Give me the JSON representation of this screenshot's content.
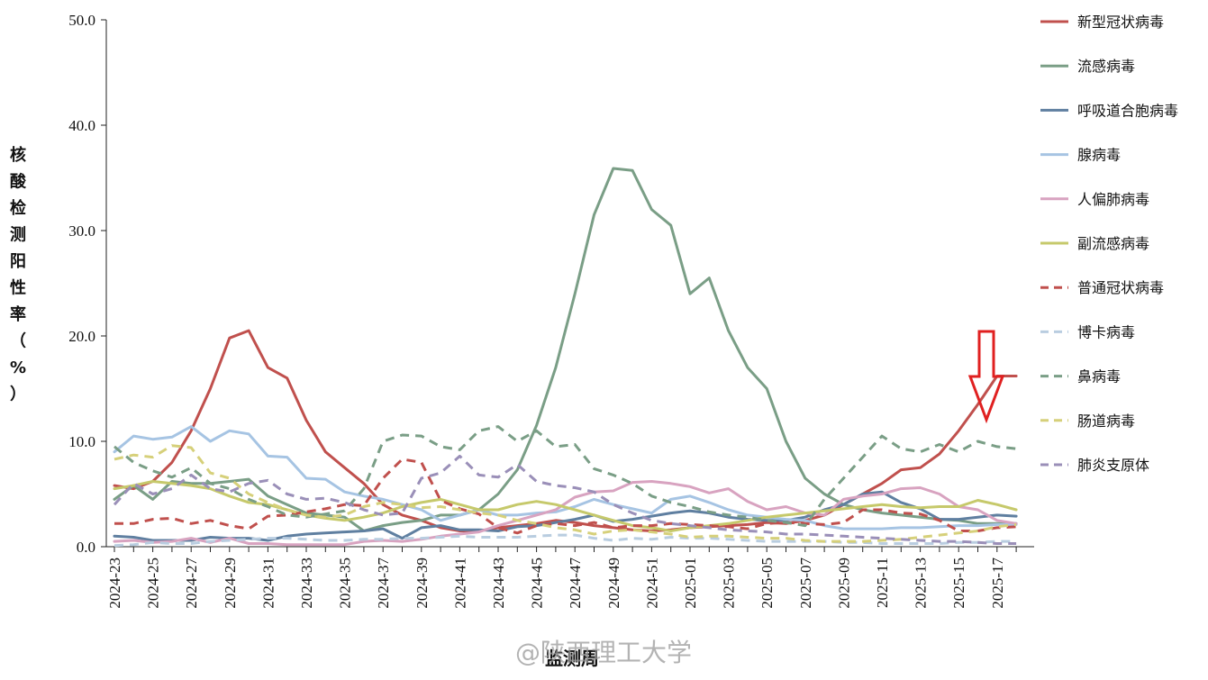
{
  "chart_data": {
    "type": "line",
    "title": "",
    "xlabel": "监测周",
    "ylabel": "核酸检测阳性率（%）",
    "ylim": [
      0,
      50
    ],
    "yticks": [
      "0.0",
      "10.0",
      "20.0",
      "30.0",
      "40.0",
      "50.0"
    ],
    "grid": false,
    "legend_position": "right",
    "watermark": "@陕西理工大学",
    "x": [
      "2024-23",
      "2024-24",
      "2024-25",
      "2024-26",
      "2024-27",
      "2024-28",
      "2024-29",
      "2024-30",
      "2024-31",
      "2024-32",
      "2024-33",
      "2024-34",
      "2024-35",
      "2024-36",
      "2024-37",
      "2024-38",
      "2024-39",
      "2024-40",
      "2024-41",
      "2024-42",
      "2024-43",
      "2024-44",
      "2024-45",
      "2024-46",
      "2024-47",
      "2024-48",
      "2024-49",
      "2024-50",
      "2024-51",
      "2024-52",
      "2025-01",
      "2025-02",
      "2025-03",
      "2025-04",
      "2025-05",
      "2025-06",
      "2025-07",
      "2025-08",
      "2025-09",
      "2025-10",
      "2025-11",
      "2025-12",
      "2025-13",
      "2025-14",
      "2025-15",
      "2025-16",
      "2025-17",
      "2025-18"
    ],
    "x_tick_labels": [
      "2024-23",
      "2024-25",
      "2024-27",
      "2024-29",
      "2024-31",
      "2024-33",
      "2024-35",
      "2024-37",
      "2024-39",
      "2024-41",
      "2024-43",
      "2024-45",
      "2024-47",
      "2024-49",
      "2024-51",
      "2025-01",
      "2025-03",
      "2025-05",
      "2025-07",
      "2025-09",
      "2025-11",
      "2025-13",
      "2025-15",
      "2025-17"
    ],
    "series": [
      {
        "name": "新型冠状病毒",
        "color": "#c0504d",
        "dash": false,
        "values": [
          5.8,
          5.5,
          6.2,
          8.0,
          11.0,
          15.0,
          19.8,
          20.5,
          17.0,
          16.0,
          12.0,
          9.0,
          7.5,
          6.0,
          4.0,
          3.0,
          2.5,
          1.8,
          1.5,
          1.5,
          1.8,
          2.0,
          2.2,
          2.5,
          2.3,
          2.0,
          1.8,
          1.6,
          1.5,
          1.6,
          1.8,
          1.9,
          2.0,
          2.1,
          2.3,
          2.2,
          2.5,
          3.0,
          4.0,
          5.0,
          6.0,
          7.3,
          7.5,
          8.8,
          11.0,
          13.5,
          16.2,
          16.2
        ]
      },
      {
        "name": "流感病毒",
        "color": "#7a9e86",
        "dash": false,
        "values": [
          4.5,
          5.8,
          4.5,
          6.2,
          6.0,
          6.0,
          6.2,
          6.4,
          4.8,
          4.0,
          3.2,
          3.0,
          2.8,
          1.5,
          2.0,
          2.3,
          2.5,
          3.0,
          3.0,
          3.5,
          5.0,
          7.3,
          11.5,
          17.0,
          24.0,
          31.5,
          35.9,
          35.7,
          32.0,
          30.5,
          24.0,
          25.5,
          20.5,
          17.0,
          15.0,
          10.0,
          6.5,
          5.0,
          4.0,
          3.5,
          3.2,
          3.0,
          2.8,
          2.6,
          2.5,
          2.2,
          2.2,
          2.2
        ]
      },
      {
        "name": "呼吸道合胞病毒",
        "color": "#5f7fa0",
        "dash": false,
        "values": [
          1.0,
          0.9,
          0.6,
          0.6,
          0.6,
          0.9,
          0.8,
          0.8,
          0.6,
          1.0,
          1.2,
          1.3,
          1.4,
          1.5,
          1.7,
          0.8,
          1.8,
          2.0,
          1.6,
          1.6,
          1.5,
          1.9,
          2.0,
          2.3,
          2.6,
          3.0,
          2.4,
          2.6,
          2.9,
          3.2,
          3.4,
          3.2,
          2.8,
          2.6,
          2.5,
          2.5,
          2.8,
          3.5,
          4.0,
          5.0,
          5.2,
          4.2,
          3.6,
          2.6,
          2.6,
          2.8,
          3.0,
          2.9
        ]
      },
      {
        "name": "腺病毒",
        "color": "#a6c4e3",
        "dash": false,
        "values": [
          9.0,
          10.5,
          10.2,
          10.4,
          11.4,
          10.0,
          11.0,
          10.7,
          8.6,
          8.5,
          6.5,
          6.4,
          5.2,
          4.8,
          4.5,
          4.0,
          3.5,
          2.5,
          3.0,
          3.5,
          3.0,
          3.0,
          3.2,
          3.3,
          3.8,
          4.5,
          4.0,
          3.6,
          3.2,
          4.5,
          4.8,
          4.2,
          3.5,
          3.0,
          2.8,
          2.6,
          2.5,
          2.0,
          1.7,
          1.7,
          1.7,
          1.8,
          1.8,
          1.9,
          2.0,
          2.0,
          2.1,
          2.1
        ]
      },
      {
        "name": "人偏肺病毒",
        "color": "#d8a3c0",
        "dash": false,
        "values": [
          0.5,
          0.6,
          0.4,
          0.5,
          0.8,
          0.4,
          0.8,
          0.3,
          0.3,
          0.2,
          0.2,
          0.2,
          0.2,
          0.5,
          0.6,
          0.5,
          0.7,
          1.0,
          1.2,
          1.4,
          2.0,
          2.5,
          3.0,
          3.5,
          4.7,
          5.2,
          5.3,
          6.1,
          6.2,
          6.0,
          5.7,
          5.1,
          5.5,
          4.3,
          3.5,
          3.8,
          3.2,
          3.0,
          4.5,
          4.8,
          5.0,
          5.5,
          5.6,
          5.0,
          3.8,
          3.5,
          2.5,
          2.2
        ]
      },
      {
        "name": "副流感病毒",
        "color": "#c6c96b",
        "dash": false,
        "values": [
          5.5,
          5.8,
          6.2,
          6.0,
          5.8,
          5.5,
          4.8,
          4.2,
          4.0,
          3.5,
          3.0,
          2.7,
          2.5,
          2.8,
          3.2,
          3.8,
          4.2,
          4.5,
          4.0,
          3.5,
          3.5,
          4.0,
          4.3,
          4.0,
          3.5,
          3.0,
          2.5,
          2.0,
          1.8,
          1.5,
          1.8,
          2.0,
          2.2,
          2.5,
          2.8,
          3.0,
          3.2,
          3.4,
          3.6,
          3.8,
          4.0,
          3.8,
          3.7,
          3.8,
          3.8,
          4.4,
          4.0,
          3.5
        ]
      },
      {
        "name": "普通冠状病毒",
        "color": "#c0504d",
        "dash": true,
        "values": [
          2.2,
          2.2,
          2.6,
          2.7,
          2.2,
          2.5,
          2.0,
          1.7,
          2.9,
          3.0,
          3.3,
          3.6,
          4.0,
          3.9,
          6.5,
          8.3,
          8.0,
          4.4,
          3.6,
          3.1,
          1.8,
          1.3,
          2.0,
          2.2,
          2.0,
          2.3,
          1.8,
          2.0,
          2.0,
          2.2,
          2.1,
          2.0,
          1.9,
          1.7,
          2.2,
          2.3,
          2.2,
          2.1,
          2.3,
          3.5,
          3.5,
          3.2,
          3.1,
          2.5,
          1.5,
          1.5,
          1.8,
          1.9
        ]
      },
      {
        "name": "博卡病毒",
        "color": "#b9cde0",
        "dash": true,
        "values": [
          0.1,
          0.2,
          0.4,
          0.3,
          0.3,
          0.5,
          0.6,
          0.7,
          0.8,
          0.8,
          0.7,
          0.6,
          0.6,
          0.7,
          0.7,
          0.8,
          0.8,
          0.9,
          1.0,
          0.9,
          0.9,
          0.9,
          1.0,
          1.1,
          1.1,
          0.8,
          0.6,
          0.8,
          0.7,
          0.9,
          0.8,
          0.8,
          0.7,
          0.6,
          0.5,
          0.5,
          0.5,
          0.5,
          0.4,
          0.4,
          0.3,
          0.3,
          0.3,
          0.3,
          0.4,
          0.4,
          0.5,
          0.5
        ]
      },
      {
        "name": "鼻病毒",
        "color": "#7a9e86",
        "dash": true,
        "values": [
          9.5,
          8.0,
          7.2,
          6.6,
          7.5,
          6.0,
          5.5,
          4.5,
          3.8,
          3.0,
          2.8,
          3.1,
          3.4,
          5.5,
          10.0,
          10.6,
          10.5,
          9.5,
          9.2,
          11.0,
          11.4,
          10.0,
          11.0,
          9.5,
          9.7,
          7.4,
          6.8,
          6.0,
          4.8,
          4.2,
          3.8,
          3.3,
          3.0,
          2.8,
          2.5,
          2.3,
          2.0,
          4.5,
          6.5,
          8.5,
          10.5,
          9.3,
          9.0,
          9.7,
          9.0,
          10.0,
          9.5,
          9.3
        ]
      },
      {
        "name": "肠道病毒",
        "color": "#d6d07a",
        "dash": true,
        "values": [
          8.3,
          8.7,
          8.5,
          9.6,
          9.4,
          7.0,
          6.5,
          5.0,
          4.2,
          3.5,
          3.0,
          2.8,
          3.0,
          3.8,
          4.2,
          4.0,
          3.7,
          3.8,
          3.5,
          3.2,
          3.0,
          2.5,
          2.2,
          1.8,
          1.6,
          1.2,
          1.5,
          1.6,
          1.4,
          1.2,
          0.9,
          1.0,
          1.0,
          0.9,
          0.8,
          0.8,
          0.6,
          0.5,
          0.5,
          0.5,
          0.6,
          0.7,
          0.9,
          1.1,
          1.3,
          1.5,
          1.9,
          2.1
        ]
      },
      {
        "name": "肺炎支原体",
        "color": "#9a8fb8",
        "dash": true,
        "values": [
          4.0,
          6.0,
          5.0,
          5.5,
          6.8,
          5.5,
          5.2,
          6.0,
          6.3,
          5.0,
          4.5,
          4.6,
          4.2,
          3.5,
          3.0,
          3.2,
          6.5,
          7.0,
          8.6,
          6.8,
          6.6,
          7.8,
          6.2,
          5.8,
          5.6,
          5.2,
          4.0,
          3.2,
          2.5,
          2.2,
          2.0,
          1.8,
          1.6,
          1.5,
          1.4,
          1.2,
          1.2,
          1.1,
          1.0,
          0.9,
          0.8,
          0.7,
          0.6,
          0.5,
          0.5,
          0.4,
          0.3,
          0.3
        ]
      }
    ]
  }
}
